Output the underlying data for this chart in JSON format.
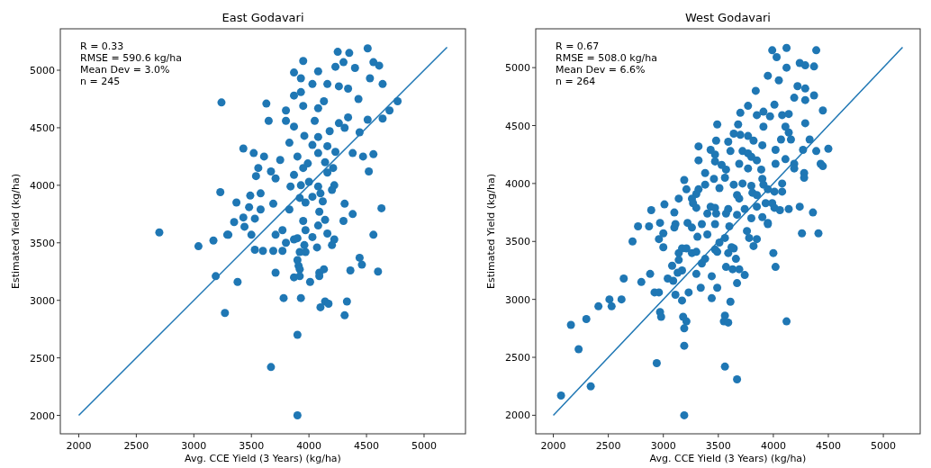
{
  "chart_data": [
    {
      "type": "scatter",
      "title": "East Godavari",
      "xlabel": "Avg. CCE Yield (3 Years) (kg/ha)",
      "ylabel": "Estimated Yield (kg/ha)",
      "annotations": [
        "R = 0.33",
        "RMSE = 590.6 kg/ha",
        "Mean Dev = 3.0%",
        "n = 245"
      ],
      "xlim": [
        1840,
        5360
      ],
      "ylim": [
        1840,
        5360
      ],
      "xticks": [
        2000,
        2500,
        3000,
        3500,
        4000,
        4500,
        5000
      ],
      "yticks": [
        2000,
        2500,
        3000,
        3500,
        4000,
        4500,
        5000
      ],
      "series": [
        {
          "color": "#1f77b4",
          "marker": "circle",
          "x": [
            4510,
            4250,
            4350,
            3950,
            4300,
            4560,
            4610,
            4230,
            3870,
            4080,
            4400,
            3930,
            4030,
            4160,
            4260,
            4530,
            4640,
            4340,
            3870,
            3930,
            4430,
            4130,
            4080,
            3240,
            3630,
            3800,
            3950,
            4770,
            4700,
            4640,
            4510,
            4340,
            3650,
            3800,
            3870,
            4050,
            4260,
            4180,
            4440,
            4310,
            3960,
            4080,
            3830,
            4030,
            3430,
            4160,
            3520,
            3610,
            3750,
            3900,
            4080,
            4230,
            4380,
            4560,
            4470,
            3990,
            4140,
            3560,
            3670,
            3950,
            4210,
            4520,
            3540,
            3710,
            3870,
            4160,
            4000,
            3840,
            3930,
            4080,
            4220,
            3230,
            3580,
            4100,
            4200,
            3920,
            4030,
            3490,
            3370,
            3690,
            3970,
            4120,
            4310,
            3480,
            3580,
            3830,
            4090,
            4630,
            4380,
            3350,
            3430,
            3530,
            3950,
            4140,
            4300,
            3440,
            3770,
            3970,
            4080,
            2700,
            3300,
            3500,
            3710,
            4560,
            3040,
            3170,
            3290,
            3530,
            3600,
            3690,
            3770,
            3800,
            3870,
            3900,
            3920,
            3970,
            3960,
            4030,
            4070,
            4160,
            4220,
            4200,
            3900,
            3910,
            3920,
            4440,
            4460,
            4360,
            4600,
            3710,
            3870,
            3920,
            4010,
            4090,
            4090,
            4130,
            3190,
            3380,
            3780,
            3930,
            4100,
            4140,
            4170,
            4330,
            4310,
            3270,
            3900,
            3670,
            3900
          ],
          "values": [
            5190,
            5160,
            5150,
            5080,
            5070,
            5070,
            5040,
            5030,
            4980,
            4990,
            5020,
            4930,
            4880,
            4880,
            4860,
            4930,
            4880,
            4840,
            4780,
            4810,
            4750,
            4730,
            4670,
            4720,
            4710,
            4650,
            4690,
            4730,
            4650,
            4580,
            4570,
            4590,
            4560,
            4560,
            4510,
            4560,
            4540,
            4470,
            4460,
            4500,
            4430,
            4420,
            4370,
            4350,
            4320,
            4340,
            4280,
            4250,
            4220,
            4250,
            4280,
            4290,
            4280,
            4270,
            4250,
            4190,
            4200,
            4150,
            4120,
            4150,
            4150,
            4120,
            4080,
            4060,
            4090,
            4110,
            4030,
            3990,
            4000,
            3990,
            4000,
            3940,
            3930,
            3930,
            3960,
            3890,
            3900,
            3910,
            3850,
            3840,
            3850,
            3860,
            3840,
            3810,
            3790,
            3790,
            3770,
            3800,
            3750,
            3680,
            3720,
            3710,
            3690,
            3700,
            3690,
            3640,
            3610,
            3610,
            3650,
            3590,
            3570,
            3570,
            3570,
            3570,
            3470,
            3520,
            3570,
            3440,
            3430,
            3430,
            3430,
            3500,
            3530,
            3540,
            3420,
            3420,
            3480,
            3550,
            3460,
            3580,
            3530,
            3480,
            3350,
            3300,
            3270,
            3370,
            3310,
            3260,
            3250,
            3240,
            3200,
            3210,
            3160,
            3240,
            3210,
            3270,
            3210,
            3160,
            3020,
            3020,
            2940,
            2990,
            2970,
            2990,
            2870,
            2890,
            2700,
            2420,
            2000
          ]
        },
        {
          "type": "line",
          "color": "#1f77b4",
          "marker": "none",
          "x": [
            2000,
            5200
          ],
          "values": [
            2000,
            5200
          ]
        }
      ]
    },
    {
      "type": "scatter",
      "title": "West Godavari",
      "xlabel": "Avg. CCE Yield (3 Years) (kg/ha)",
      "ylabel": "Estimated Yield (kg/ha)",
      "annotations": [
        "R = 0.67",
        "RMSE = 508.0 kg/ha",
        "Mean Dev = 6.6%",
        "n = 264"
      ],
      "xlim": [
        1840,
        5335
      ],
      "ylim": [
        1840,
        5335
      ],
      "xticks": [
        2000,
        2500,
        3000,
        3500,
        4000,
        4500,
        5000
      ],
      "yticks": [
        2000,
        2500,
        3000,
        3500,
        4000,
        4500,
        5000
      ],
      "series": [
        {
          "color": "#1f77b4",
          "marker": "circle",
          "x": [
            3990,
            4120,
            4390,
            4030,
            4240,
            4290,
            4370,
            4120,
            3950,
            4050,
            4220,
            4290,
            3840,
            4190,
            4290,
            4370,
            4010,
            4450,
            3700,
            3770,
            3850,
            3910,
            4080,
            4140,
            3970,
            3910,
            3680,
            3490,
            4110,
            4290,
            4140,
            3640,
            3700,
            3770,
            3820,
            3900,
            4070,
            4330,
            4160,
            3480,
            3590,
            3320,
            3430,
            3610,
            3720,
            3770,
            4020,
            4500,
            4270,
            4390,
            3470,
            3800,
            3850,
            3320,
            4110,
            3470,
            4190,
            4430,
            3530,
            3690,
            4020,
            3890,
            3570,
            3770,
            4450,
            3380,
            4190,
            4280,
            4280,
            3900,
            3560,
            3460,
            3190,
            3720,
            3640,
            3910,
            4080,
            3800,
            3380,
            3320,
            3210,
            3510,
            3950,
            4010,
            4080,
            3810,
            3300,
            3140,
            3670,
            3850,
            3260,
            3270,
            3690,
            4240,
            3850,
            3930,
            3990,
            3430,
            3470,
            3300,
            3590,
            4010,
            4060,
            4140,
            4360,
            3010,
            2890,
            3100,
            3400,
            3480,
            3570,
            3670,
            3740,
            3800,
            3900,
            3950,
            2770,
            2870,
            2970,
            3110,
            3220,
            3350,
            3470,
            3600,
            2720,
            2960,
            3000,
            3000,
            3100,
            3260,
            3310,
            3400,
            3560,
            3510,
            3470,
            3490,
            3590,
            3620,
            3640,
            3660,
            3760,
            3780,
            3820,
            3850,
            3950,
            4260,
            4410,
            4000,
            4020,
            3140,
            3170,
            3210,
            3260,
            3300,
            3140,
            3080,
            3170,
            3130,
            3350,
            3380,
            3300,
            3570,
            3630,
            3690,
            3740,
            3440,
            3670,
            3340,
            3490,
            3230,
            3440,
            3610,
            2640,
            2800,
            2880,
            3040,
            3090,
            2920,
            2960,
            3110,
            3170,
            2510,
            2620,
            2410,
            2530,
            2970,
            2980,
            3180,
            3210,
            3560,
            3550,
            3590,
            3190,
            4120,
            2160,
            2300,
            2230,
            3190,
            2940,
            3560,
            3670,
            2340,
            2070,
            3190
          ],
          "values": [
            5150,
            5170,
            5150,
            5090,
            5040,
            5020,
            5010,
            5000,
            4930,
            4890,
            4840,
            4820,
            4800,
            4740,
            4720,
            4760,
            4680,
            4630,
            4610,
            4670,
            4590,
            4620,
            4590,
            4600,
            4580,
            4490,
            4510,
            4510,
            4490,
            4520,
            4440,
            4430,
            4420,
            4410,
            4370,
            4330,
            4380,
            4380,
            4380,
            4370,
            4360,
            4320,
            4290,
            4280,
            4280,
            4260,
            4290,
            4300,
            4290,
            4280,
            4250,
            4230,
            4200,
            4200,
            4210,
            4190,
            4170,
            4170,
            4160,
            4170,
            4170,
            4120,
            4120,
            4130,
            4150,
            4090,
            4130,
            4090,
            4050,
            4040,
            4050,
            4040,
            4030,
            4000,
            3990,
            3990,
            4000,
            3980,
            3990,
            3950,
            3950,
            3960,
            3950,
            3930,
            3930,
            3920,
            3910,
            3870,
            3900,
            3900,
            3870,
            3830,
            3870,
            3800,
            3800,
            3830,
            3830,
            3800,
            3790,
            3790,
            3780,
            3790,
            3770,
            3780,
            3750,
            3820,
            3770,
            3750,
            3740,
            3740,
            3740,
            3730,
            3780,
            3700,
            3710,
            3660,
            3630,
            3630,
            3660,
            3650,
            3660,
            3650,
            3650,
            3630,
            3500,
            3520,
            3570,
            3450,
            3620,
            3620,
            3540,
            3560,
            3530,
            3490,
            3430,
            3410,
            3400,
            3450,
            3440,
            3350,
            3590,
            3530,
            3460,
            3520,
            3650,
            3570,
            3570,
            3400,
            3280,
            3400,
            3440,
            3440,
            3400,
            3410,
            3340,
            3290,
            3250,
            3230,
            3310,
            3350,
            3220,
            3280,
            3260,
            3260,
            3210,
            3200,
            3140,
            3100,
            3100,
            3060,
            3010,
            2980,
            3180,
            3150,
            3220,
            3180,
            3160,
            3060,
            3060,
            3040,
            2990,
            3000,
            3000,
            2940,
            2940,
            2890,
            2850,
            2850,
            2810,
            2860,
            2810,
            2800,
            2750,
            2810,
            2780,
            2830,
            2570,
            2600,
            2450,
            2420,
            2310,
            2250,
            2170,
            2000
          ]
        },
        {
          "type": "line",
          "color": "#1f77b4",
          "marker": "none",
          "x": [
            2000,
            5175
          ],
          "values": [
            2000,
            5175
          ]
        }
      ]
    }
  ]
}
